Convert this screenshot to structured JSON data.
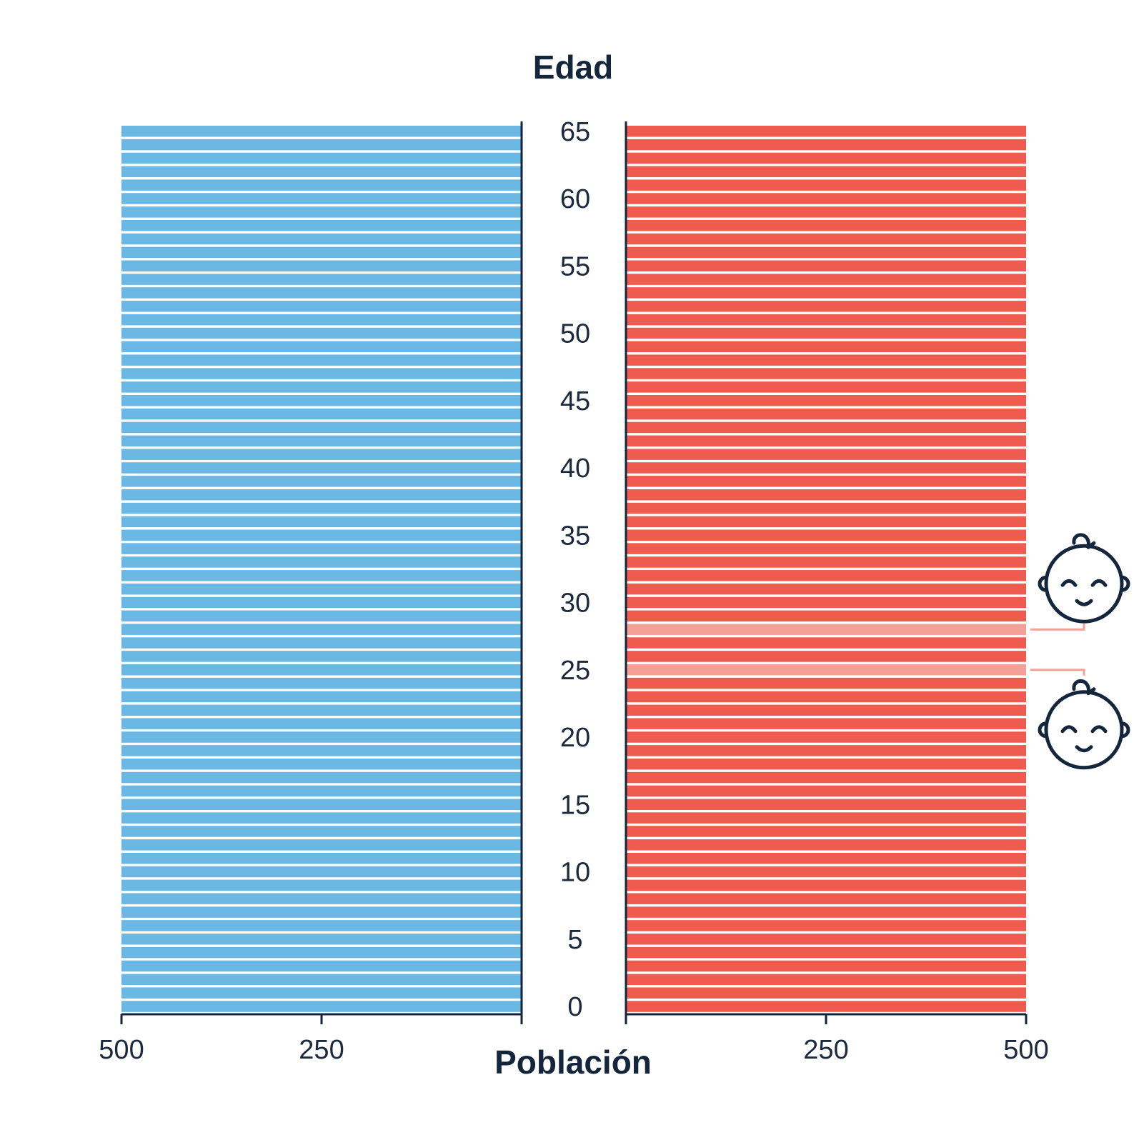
{
  "chart_data": {
    "type": "bar",
    "subtype": "population-pyramid",
    "title": "Edad",
    "xlabel": "Población",
    "ylabel": "Edad",
    "y_ticks": [
      0,
      5,
      10,
      15,
      20,
      25,
      30,
      35,
      40,
      45,
      50,
      55,
      60,
      65
    ],
    "x_ticks_left": [
      500,
      250
    ],
    "x_ticks_right": [
      250,
      500
    ],
    "xlim": [
      0,
      500
    ],
    "ages": [
      0,
      1,
      2,
      3,
      4,
      5,
      6,
      7,
      8,
      9,
      10,
      11,
      12,
      13,
      14,
      15,
      16,
      17,
      18,
      19,
      20,
      21,
      22,
      23,
      24,
      25,
      26,
      27,
      28,
      29,
      30,
      31,
      32,
      33,
      34,
      35,
      36,
      37,
      38,
      39,
      40,
      41,
      42,
      43,
      44,
      45,
      46,
      47,
      48,
      49,
      50,
      51,
      52,
      53,
      54,
      55,
      56,
      57,
      58,
      59,
      60,
      61,
      62,
      63,
      64,
      65
    ],
    "series": [
      {
        "side": "left",
        "color": "#6bb8e4",
        "values": [
          500,
          500,
          500,
          500,
          500,
          500,
          500,
          500,
          500,
          500,
          500,
          500,
          500,
          500,
          500,
          500,
          500,
          500,
          500,
          500,
          500,
          500,
          500,
          500,
          500,
          500,
          500,
          500,
          500,
          500,
          500,
          500,
          500,
          500,
          500,
          500,
          500,
          500,
          500,
          500,
          500,
          500,
          500,
          500,
          500,
          500,
          500,
          500,
          500,
          500,
          500,
          500,
          500,
          500,
          500,
          500,
          500,
          500,
          500,
          500,
          500,
          500,
          500,
          500,
          500,
          500
        ]
      },
      {
        "side": "right",
        "color": "#ef5c4f",
        "values": [
          500,
          500,
          500,
          500,
          500,
          500,
          500,
          500,
          500,
          500,
          500,
          500,
          500,
          500,
          500,
          500,
          500,
          500,
          500,
          500,
          500,
          500,
          500,
          500,
          500,
          500,
          500,
          500,
          500,
          500,
          500,
          500,
          500,
          500,
          500,
          500,
          500,
          500,
          500,
          500,
          500,
          500,
          500,
          500,
          500,
          500,
          500,
          500,
          500,
          500,
          500,
          500,
          500,
          500,
          500,
          500,
          500,
          500,
          500,
          500,
          500,
          500,
          500,
          500,
          500,
          500
        ]
      }
    ],
    "highlighted_ages": [
      25,
      28
    ],
    "highlight_color": "#f4a097",
    "annotation_icon": "baby-face-icon"
  },
  "colors": {
    "axis": "#13263c",
    "text": "#1b2a3d"
  }
}
